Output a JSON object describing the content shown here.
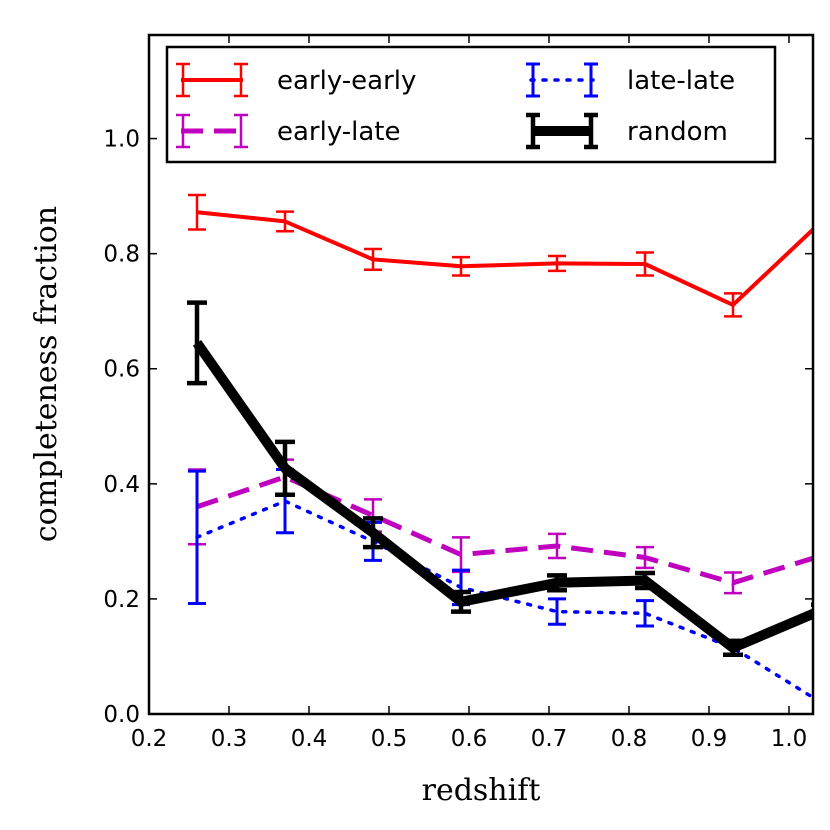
{
  "chart_data": {
    "type": "line",
    "xlabel": "redshift",
    "ylabel": "completeness fraction",
    "xlim": [
      0.2,
      1.03
    ],
    "ylim": [
      0.0,
      1.18
    ],
    "xticks": [
      0.2,
      0.3,
      0.4,
      0.5,
      0.6,
      0.7,
      0.8,
      0.9,
      1.0
    ],
    "xtick_labels": [
      "0.2",
      "0.3",
      "0.4",
      "0.5",
      "0.6",
      "0.7",
      "0.8",
      "0.9",
      "1.0"
    ],
    "yticks": [
      0.0,
      0.2,
      0.4,
      0.6,
      0.8,
      1.0
    ],
    "ytick_labels": [
      "0.0",
      "0.2",
      "0.4",
      "0.6",
      "0.8",
      "1.0"
    ],
    "legend_position": "top",
    "series": [
      {
        "name": "early-early",
        "color": "#ff0000",
        "style": "solid",
        "x": [
          0.26,
          0.37,
          0.48,
          0.59,
          0.71,
          0.82,
          0.93,
          1.04
        ],
        "y": [
          0.872,
          0.856,
          0.79,
          0.778,
          0.783,
          0.782,
          0.711,
          0.855
        ],
        "err": [
          0.03,
          0.017,
          0.018,
          0.016,
          0.013,
          0.02,
          0.02,
          0.02
        ]
      },
      {
        "name": "early-late",
        "color": "#bf00bf",
        "style": "dashed",
        "x": [
          0.26,
          0.37,
          0.48,
          0.59,
          0.71,
          0.82,
          0.93,
          1.04
        ],
        "y": [
          0.36,
          0.412,
          0.345,
          0.277,
          0.292,
          0.272,
          0.228,
          0.275
        ],
        "err": [
          0.065,
          0.03,
          0.028,
          0.03,
          0.021,
          0.018,
          0.018,
          0.02
        ]
      },
      {
        "name": "late-late",
        "color": "#0000ff",
        "style": "dotted",
        "x": [
          0.26,
          0.37,
          0.48,
          0.59,
          0.71,
          0.82,
          0.93,
          1.04
        ],
        "y": [
          0.307,
          0.37,
          0.3,
          0.22,
          0.178,
          0.175,
          0.115,
          0.02
        ],
        "err": [
          0.115,
          0.055,
          0.033,
          0.03,
          0.022,
          0.022,
          0.013,
          0.01
        ]
      },
      {
        "name": "random",
        "color": "#000000",
        "style": "solid-thick",
        "x": [
          0.26,
          0.37,
          0.48,
          0.59,
          0.71,
          0.82,
          0.93,
          1.04
        ],
        "y": [
          0.645,
          0.427,
          0.315,
          0.195,
          0.228,
          0.232,
          0.115,
          0.18
        ],
        "err": [
          0.07,
          0.046,
          0.025,
          0.017,
          0.013,
          0.013,
          0.012,
          0.01
        ]
      }
    ]
  }
}
